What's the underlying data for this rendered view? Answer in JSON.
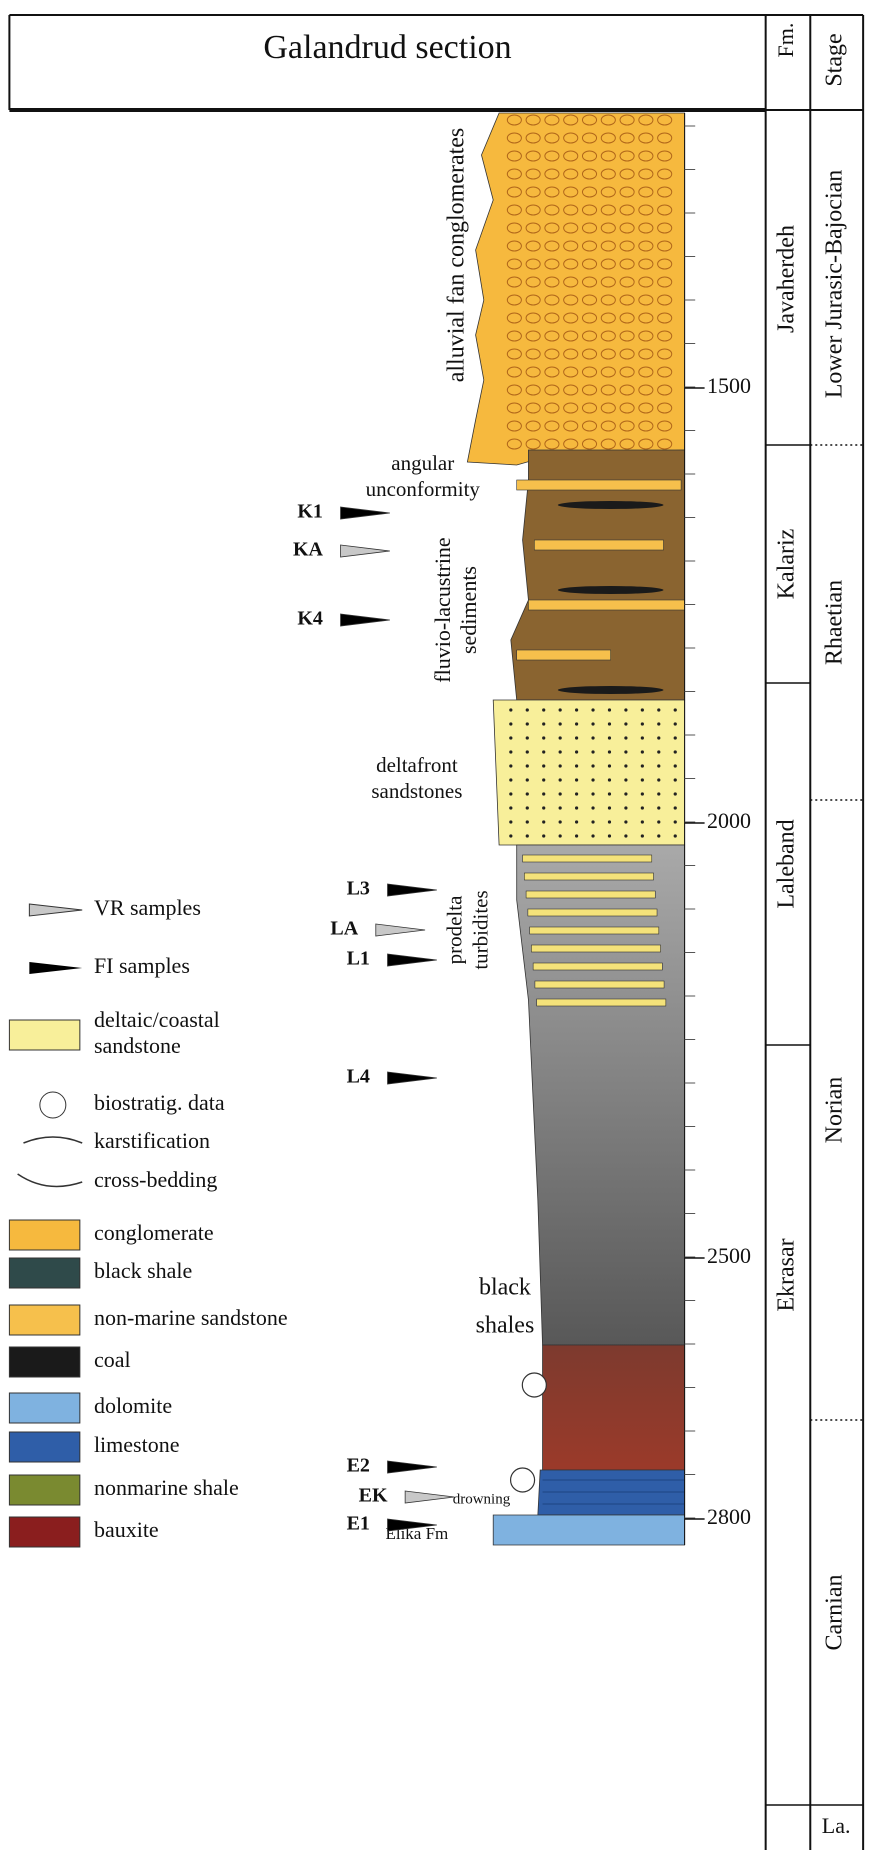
{
  "header": {
    "title": "Galandrud section",
    "formation_heading": "Fm.",
    "stage_heading": "Stage"
  },
  "depth_ticks": [
    1500,
    2000,
    2500,
    2800
  ],
  "formations": [
    "Javaherdeh",
    "Kalariz",
    "Laleband",
    "Ekrasar"
  ],
  "stages": [
    "Lower Jurasic-Bajocian",
    "Rhaetian",
    "Norian",
    "Carnian",
    "La."
  ],
  "annotations": [
    {
      "lines": [
        "alluvial fan conglomerates"
      ]
    },
    {
      "lines": [
        "angular",
        "unconformity"
      ]
    },
    {
      "lines": [
        "fluvio-lacustrine",
        "sediments"
      ]
    },
    {
      "lines": [
        "deltafront",
        "sandstones"
      ]
    },
    {
      "lines": [
        "prodelta",
        "turbidites"
      ]
    },
    {
      "lines": [
        "black",
        "shales"
      ]
    },
    {
      "lines": [
        "drowning"
      ]
    },
    {
      "lines": [
        "Elika Fm"
      ]
    }
  ],
  "samples": [
    {
      "label": "K1",
      "color": "#000000"
    },
    {
      "label": "KA",
      "color": "#c8c8c8"
    },
    {
      "label": "K4",
      "color": "#000000"
    },
    {
      "label": "L3",
      "color": "#000000"
    },
    {
      "label": "LA",
      "color": "#c8c8c8"
    },
    {
      "label": "L1",
      "color": "#000000"
    },
    {
      "label": "L4",
      "color": "#000000"
    },
    {
      "label": "E2",
      "color": "#000000"
    },
    {
      "label": "EK",
      "color": "#c8c8c8"
    },
    {
      "label": "E1",
      "color": "#000000"
    }
  ],
  "legend": [
    {
      "lines": [
        "VR samples"
      ]
    },
    {
      "lines": [
        "FI samples"
      ]
    },
    {
      "lines": [
        "deltaic/coastal",
        "sandstone"
      ]
    },
    {
      "lines": [
        "biostratig. data"
      ]
    },
    {
      "lines": [
        "karstification"
      ]
    },
    {
      "lines": [
        "cross-bedding"
      ]
    },
    {
      "lines": [
        "conglomerate"
      ]
    },
    {
      "lines": [
        "black shale"
      ]
    },
    {
      "lines": [
        "non-marine sandstone"
      ]
    },
    {
      "lines": [
        "coal"
      ]
    },
    {
      "lines": [
        "dolomite"
      ]
    },
    {
      "lines": [
        "limestone"
      ]
    },
    {
      "lines": [
        "nonmarine shale"
      ]
    },
    {
      "lines": [
        "bauxite"
      ]
    }
  ]
}
